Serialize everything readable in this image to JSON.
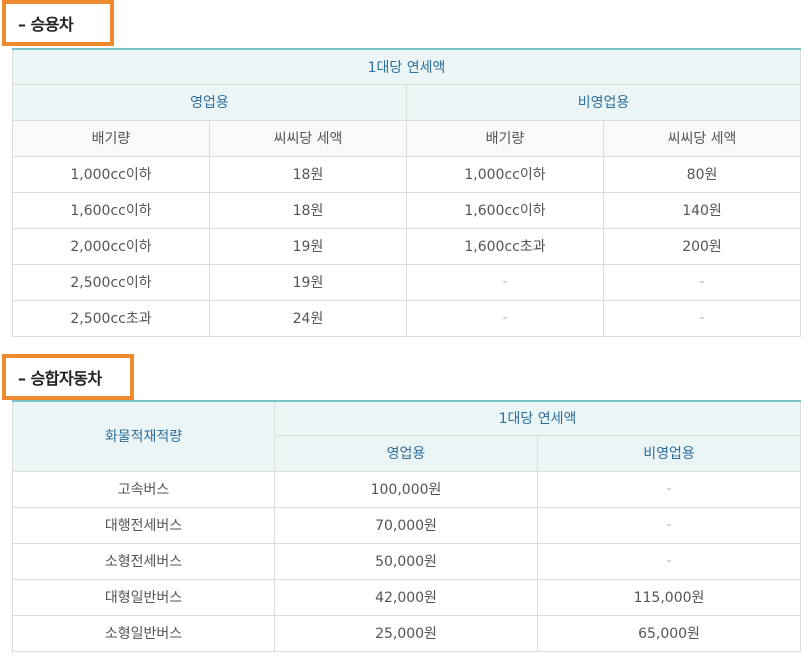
{
  "passenger": {
    "section_title": "– 승용차",
    "header_top": "1대당 연세액",
    "group_business": "영업용",
    "group_nonbusiness": "비영업용",
    "col_displacement": "배기량",
    "col_tax_per_cc": "씨씨당 세액",
    "rows": [
      {
        "a": "1,000cc이하",
        "b": "18원",
        "c": "1,000cc이하",
        "d": "80원"
      },
      {
        "a": "1,600cc이하",
        "b": "18원",
        "c": "1,600cc이하",
        "d": "140원"
      },
      {
        "a": "2,000cc이하",
        "b": "19원",
        "c": "1,600cc초과",
        "d": "200원"
      },
      {
        "a": "2,500cc이하",
        "b": "19원",
        "c": "-",
        "d": "-"
      },
      {
        "a": "2,500cc초과",
        "b": "24원",
        "c": "-",
        "d": "-"
      }
    ]
  },
  "bus": {
    "section_title": "– 승합자동차",
    "col_capacity": "화물적재적량",
    "header_top": "1대당 연세액",
    "col_business": "영업용",
    "col_nonbusiness": "비영업용",
    "rows": [
      {
        "a": "고속버스",
        "b": "100,000원",
        "c": "-"
      },
      {
        "a": "대행전세버스",
        "b": "70,000원",
        "c": "-"
      },
      {
        "a": "소형전세버스",
        "b": "50,000원",
        "c": "-"
      },
      {
        "a": "대형일반버스",
        "b": "42,000원",
        "c": "115,000원"
      },
      {
        "a": "소형일반버스",
        "b": "25,000원",
        "c": "65,000원"
      }
    ]
  }
}
